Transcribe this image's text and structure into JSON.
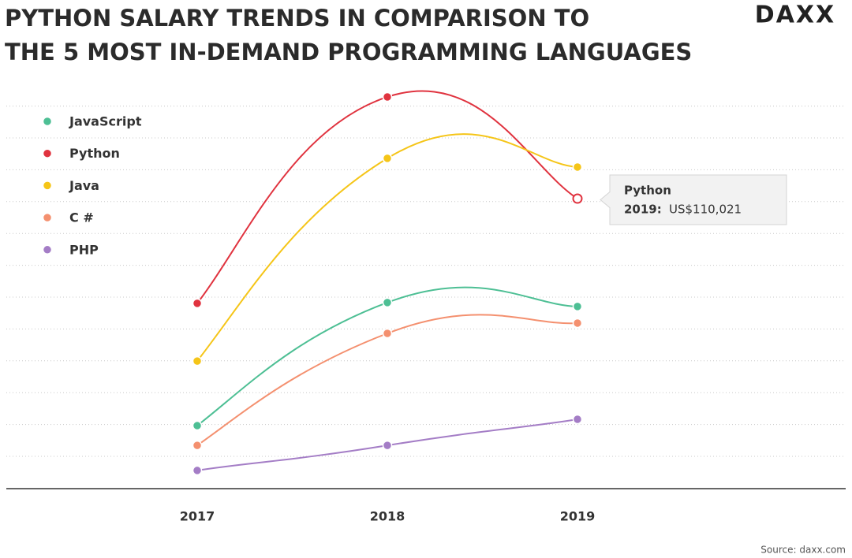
{
  "chart_data": {
    "type": "line",
    "title": [
      "PYTHON SALARY TRENDS IN COMPARISON TO",
      "THE 5 MOST IN-DEMAND PROGRAMMING LANGUAGES"
    ],
    "logo": "DAXX",
    "source": "Source: daxx.com",
    "categories": [
      "2017",
      "2018",
      "2019"
    ],
    "ylim": [
      0,
      170000
    ],
    "grid": true,
    "series": [
      {
        "name": "JavaScript",
        "color": "#4dbf94",
        "values": [
          23900,
          70600,
          69100
        ]
      },
      {
        "name": "Python",
        "color": "#e0333f",
        "values": [
          70300,
          148600,
          110021
        ]
      },
      {
        "name": "Java",
        "color": "#f5c518",
        "values": [
          48400,
          125300,
          122000
        ]
      },
      {
        "name": "C #",
        "color": "#f4906f",
        "values": [
          16400,
          58900,
          62800
        ]
      },
      {
        "name": "PHP",
        "color": "#a47dc6",
        "values": [
          6900,
          16400,
          26300
        ]
      }
    ],
    "tooltip": {
      "series": "Python",
      "category": "2019:",
      "value_label": "US$110,021"
    }
  }
}
